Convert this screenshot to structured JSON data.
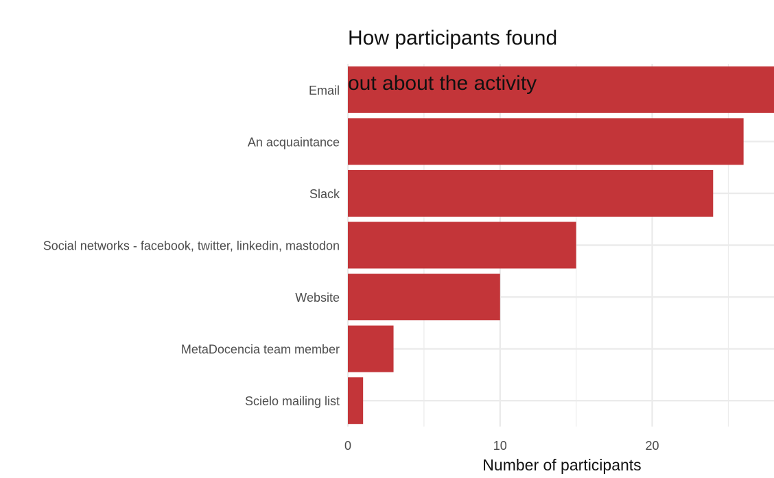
{
  "chart_data": {
    "type": "bar",
    "orientation": "horizontal",
    "title_lines": [
      "How participants found",
      "out about the activity"
    ],
    "xlabel": "Number of participants",
    "ylabel": "",
    "categories": [
      "Email",
      "An acquaintance",
      "Slack",
      "Social networks - facebook, twitter, linkedin, mastodon",
      "Website",
      "MetaDocencia team member",
      "Scielo mailing list"
    ],
    "values": [
      28,
      26,
      24,
      15,
      10,
      3,
      1
    ],
    "xlim": [
      0,
      28
    ],
    "x_ticks": [
      0,
      10,
      20
    ],
    "x_tick_labels": [
      "0",
      "10",
      "20"
    ],
    "grid": true,
    "colors": {
      "bar": "#c33539",
      "grid": "#ebebeb",
      "tick_label": "#4d4d4d",
      "title": "#111111"
    }
  }
}
